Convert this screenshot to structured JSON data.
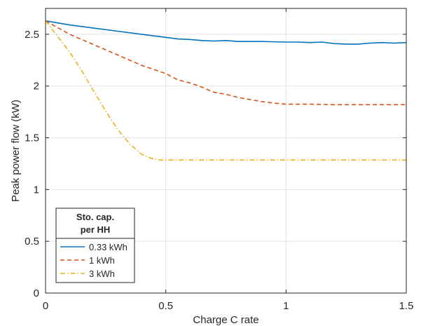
{
  "chart_data": {
    "type": "line",
    "xlabel": "Charge C rate",
    "ylabel": "Peak power flow (kW)",
    "xlim": [
      0,
      1.5
    ],
    "ylim": [
      0,
      2.75
    ],
    "xticks": [
      0,
      0.5,
      1,
      1.5
    ],
    "xtick_labels": [
      "0",
      "0.5",
      "1",
      "1.5"
    ],
    "yticks": [
      0,
      0.5,
      1,
      1.5,
      2,
      2.5
    ],
    "ytick_labels": [
      "0",
      "0.5",
      "1",
      "1.5",
      "2",
      "2.5"
    ],
    "grid": true,
    "legend": {
      "title_line1": "Sto. cap.",
      "title_line2": "per HH",
      "position": "bottom-left"
    },
    "series": [
      {
        "name": "0.33 kWh",
        "color": "#0072BD",
        "dash": "solid",
        "x": [
          0,
          0.1,
          0.2,
          0.3,
          0.4,
          0.5,
          0.55,
          0.6,
          0.65,
          0.7,
          0.75,
          0.8,
          0.9,
          1.0,
          1.05,
          1.1,
          1.15,
          1.2,
          1.25,
          1.3,
          1.35,
          1.4,
          1.45,
          1.5
        ],
        "y": [
          2.63,
          2.59,
          2.56,
          2.53,
          2.5,
          2.47,
          2.455,
          2.45,
          2.44,
          2.435,
          2.44,
          2.43,
          2.43,
          2.425,
          2.425,
          2.42,
          2.425,
          2.41,
          2.405,
          2.405,
          2.415,
          2.42,
          2.415,
          2.42
        ]
      },
      {
        "name": "1 kWh",
        "color": "#D95319",
        "dash": "dashed",
        "x": [
          0,
          0.1,
          0.2,
          0.3,
          0.4,
          0.5,
          0.55,
          0.6,
          0.65,
          0.7,
          0.75,
          0.8,
          0.85,
          0.9,
          0.95,
          1.0,
          1.1,
          1.2,
          1.3,
          1.4,
          1.5
        ],
        "y": [
          2.63,
          2.5,
          2.4,
          2.3,
          2.2,
          2.12,
          2.06,
          2.03,
          1.99,
          1.94,
          1.92,
          1.89,
          1.87,
          1.85,
          1.835,
          1.825,
          1.825,
          1.82,
          1.82,
          1.82,
          1.82
        ]
      },
      {
        "name": "3 kWh",
        "color": "#EDB120",
        "dash": "dashdot",
        "x": [
          0,
          0.05,
          0.1,
          0.15,
          0.2,
          0.25,
          0.3,
          0.35,
          0.4,
          0.43,
          0.45,
          0.48,
          0.5,
          0.6,
          0.8,
          1.0,
          1.2,
          1.5
        ],
        "y": [
          2.63,
          2.48,
          2.33,
          2.15,
          1.95,
          1.76,
          1.58,
          1.44,
          1.34,
          1.31,
          1.295,
          1.285,
          1.285,
          1.285,
          1.285,
          1.285,
          1.285,
          1.285
        ]
      }
    ]
  }
}
